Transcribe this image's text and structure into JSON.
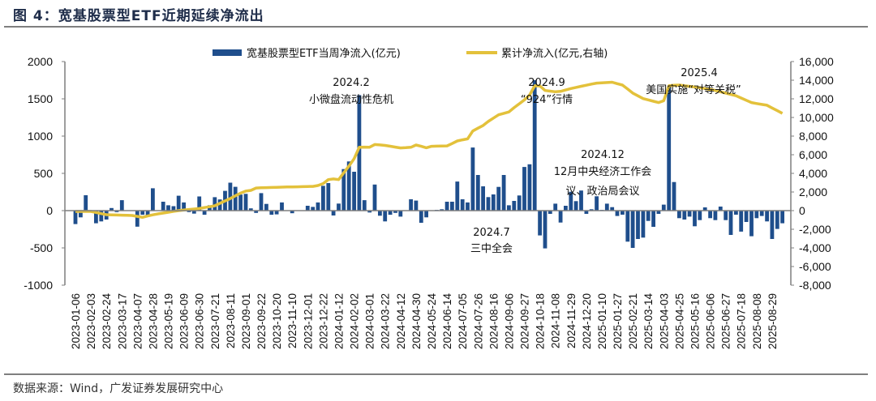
{
  "title": "图 4：宽基股票型ETF近期延续净流出",
  "source": "数据来源：Wind，广发证券发展研究中心",
  "colors": {
    "bar": "#1f4e8c",
    "line": "#e3c13b",
    "axis": "#7f7f7f"
  },
  "chart_data": {
    "type": "bar+line",
    "legend": [
      "宽基股票型ETF当周净流入(亿元)",
      "累计净流入(亿元,右轴)"
    ],
    "legend_position": "top",
    "grid": false,
    "ylim_left": [
      -1000,
      2000
    ],
    "yticks_left": [
      "2000",
      "1500",
      "1000",
      "500",
      "0",
      "-500",
      "-1000"
    ],
    "ylim_right": [
      -8000,
      16000
    ],
    "yticks_right": [
      "16,000",
      "14,000",
      "12,000",
      "10,000",
      "8,000",
      "6,000",
      "4,000",
      "2,000",
      "0",
      "-2,000",
      "-4,000",
      "-6,000",
      "-8,000"
    ],
    "xtick_labels": [
      "2023-01-06",
      "2023-02-03",
      "2023-02-24",
      "2023-03-17",
      "2023-04-07",
      "2023-04-28",
      "2023-05-19",
      "2023-06-09",
      "2023-06-30",
      "2023-07-21",
      "2023-08-11",
      "2023-09-01",
      "2023-09-22",
      "2023-10-20",
      "2023-11-10",
      "2023-12-01",
      "2023-12-22",
      "2024-01-12",
      "2024-02-02",
      "2024-03-01",
      "2024-03-22",
      "2024-04-12",
      "2024-04-30",
      "2024-05-24",
      "2024-06-14",
      "2024-07-05",
      "2024-07-26",
      "2024-08-16",
      "2024-09-06",
      "2024-09-27",
      "2024-10-18",
      "2024-11-08",
      "2024-11-29",
      "2024-12-20",
      "2025-01-10",
      "2025-01-27",
      "2025-02-21",
      "2025-03-14",
      "2025-04-03",
      "2025-04-25",
      "2025-05-16",
      "2025-06-06",
      "2025-06-27",
      "2025-07-18",
      "2025-08-08",
      "2025-08-29"
    ],
    "dates": [
      "2023-01-06",
      "2023-01-13",
      "2023-01-20",
      "2023-02-03",
      "2023-02-10",
      "2023-02-17",
      "2023-02-24",
      "2023-03-03",
      "2023-03-10",
      "2023-03-17",
      "2023-03-24",
      "2023-03-31",
      "2023-04-07",
      "2023-04-14",
      "2023-04-21",
      "2023-04-28",
      "2023-05-05",
      "2023-05-12",
      "2023-05-19",
      "2023-05-26",
      "2023-06-02",
      "2023-06-09",
      "2023-06-16",
      "2023-06-21",
      "2023-06-30",
      "2023-07-07",
      "2023-07-14",
      "2023-07-21",
      "2023-07-28",
      "2023-08-04",
      "2023-08-11",
      "2023-08-18",
      "2023-08-25",
      "2023-09-01",
      "2023-09-08",
      "2023-09-15",
      "2023-09-22",
      "2023-09-28",
      "2023-10-13",
      "2023-10-20",
      "2023-10-27",
      "2023-11-03",
      "2023-11-10",
      "2023-11-17",
      "2023-11-24",
      "2023-12-01",
      "2023-12-08",
      "2023-12-15",
      "2023-12-22",
      "2023-12-29",
      "2024-01-05",
      "2024-01-12",
      "2024-01-19",
      "2024-01-26",
      "2024-02-02",
      "2024-02-08",
      "2024-02-23",
      "2024-03-01",
      "2024-03-08",
      "2024-03-15",
      "2024-03-22",
      "2024-03-29",
      "2024-04-03",
      "2024-04-12",
      "2024-04-19",
      "2024-04-26",
      "2024-04-30",
      "2024-05-10",
      "2024-05-17",
      "2024-05-24",
      "2024-05-31",
      "2024-06-07",
      "2024-06-14",
      "2024-06-21",
      "2024-06-28",
      "2024-07-05",
      "2024-07-12",
      "2024-07-19",
      "2024-07-26",
      "2024-08-02",
      "2024-08-09",
      "2024-08-16",
      "2024-08-23",
      "2024-08-30",
      "2024-09-06",
      "2024-09-13",
      "2024-09-20",
      "2024-09-27",
      "2024-09-30",
      "2024-10-11",
      "2024-10-18",
      "2024-10-25",
      "2024-11-01",
      "2024-11-08",
      "2024-11-15",
      "2024-11-22",
      "2024-11-29",
      "2024-12-06",
      "2024-12-13",
      "2024-12-20",
      "2024-12-27",
      "2025-01-03",
      "2025-01-10",
      "2025-01-17",
      "2025-01-24",
      "2025-01-27",
      "2025-02-07",
      "2025-02-14",
      "2025-02-21",
      "2025-02-28",
      "2025-03-07",
      "2025-03-14",
      "2025-03-21",
      "2025-03-28",
      "2025-04-03",
      "2025-04-11",
      "2025-04-18",
      "2025-04-25",
      "2025-04-30",
      "2025-05-09",
      "2025-05-16",
      "2025-05-23",
      "2025-05-30",
      "2025-06-06",
      "2025-06-13",
      "2025-06-20",
      "2025-06-27",
      "2025-07-04",
      "2025-07-11",
      "2025-07-18",
      "2025-07-25",
      "2025-08-01",
      "2025-08-08",
      "2025-08-15",
      "2025-08-22",
      "2025-08-29",
      "2025-09-05",
      "2025-09-12"
    ],
    "series": [
      {
        "name": "宽基股票型ETF当周净流入(亿元)",
        "type": "bar",
        "axis": "left",
        "values": [
          -180,
          -90,
          206,
          0,
          -170,
          -145,
          -120,
          35,
          -20,
          140,
          0,
          0,
          -215,
          -55,
          -75,
          300,
          0,
          120,
          72,
          60,
          200,
          110,
          -20,
          -40,
          190,
          -55,
          72,
          180,
          150,
          265,
          375,
          320,
          215,
          225,
          30,
          -30,
          235,
          90,
          -55,
          -50,
          110,
          0,
          -35,
          0,
          0,
          65,
          50,
          110,
          333,
          370,
          -65,
          95,
          558,
          660,
          522,
          1550,
          140,
          -25,
          350,
          -68,
          -145,
          -55,
          -30,
          -80,
          0,
          152,
          135,
          -163,
          -90,
          0,
          10,
          18,
          120,
          120,
          390,
          152,
          110,
          847,
          478,
          326,
          181,
          217,
          318,
          478,
          72,
          130,
          203,
          586,
          622,
          1750,
          -333,
          -507,
          -43,
          94,
          -160,
          65,
          253,
          127,
          270,
          -43,
          18,
          192,
          10,
          94,
          47,
          -72,
          -54,
          -416,
          -500,
          -380,
          -362,
          -138,
          -217,
          -43,
          80,
          1650,
          384,
          -101,
          -120,
          -80,
          -210,
          -127,
          43,
          -101,
          -127,
          54,
          -127,
          -326,
          -54,
          -282,
          -152,
          -344,
          -101,
          -72,
          -145,
          -380,
          -246,
          -170
        ]
      },
      {
        "name": "累计净流入(亿元,右轴)",
        "type": "line",
        "axis": "right",
        "values": [
          -90,
          -90,
          -90,
          -90,
          -200,
          -320,
          -435,
          -450,
          -470,
          -490,
          -505,
          -520,
          -620,
          -720,
          -570,
          -450,
          -350,
          -260,
          -170,
          -80,
          0,
          60,
          120,
          175,
          230,
          330,
          420,
          520,
          780,
          1040,
          1300,
          1590,
          1880,
          2100,
          2175,
          2430,
          2450,
          2470,
          2490,
          2505,
          2520,
          2535,
          2550,
          2560,
          2575,
          2590,
          2600,
          2700,
          2900,
          3330,
          3400,
          3330,
          4060,
          4785,
          5570,
          6800,
          6820,
          6810,
          7100,
          7050,
          7000,
          6910,
          6820,
          6730,
          6760,
          6800,
          7040,
          6900,
          6750,
          6900,
          6920,
          6930,
          6950,
          7200,
          7480,
          7600,
          7700,
          8550,
          8850,
          9135,
          9570,
          9930,
          10290,
          10440,
          10590,
          11050,
          11470,
          11890,
          12400,
          13400,
          13380,
          12900,
          12830,
          12760,
          12800,
          12950,
          13100,
          13230,
          13350,
          13460,
          13580,
          13690,
          13720,
          13750,
          13780,
          13630,
          13480,
          13050,
          12620,
          12320,
          12030,
          11890,
          11740,
          11600,
          11800,
          13400,
          13450,
          13480,
          13410,
          13340,
          13270,
          13200,
          13100,
          13000,
          12900,
          12760,
          12620,
          12470,
          12330,
          12090,
          11840,
          11600,
          11500,
          11400,
          11310,
          11020,
          10730,
          10440
        ]
      }
    ],
    "annotations": [
      {
        "id": "a2024_2",
        "lines": [
          "2024.2",
          "小微盘流动性危机"
        ]
      },
      {
        "id": "a2024_9",
        "lines": [
          "2024.9",
          "“924”行情"
        ]
      },
      {
        "id": "a2025_4",
        "lines": [
          "2025.4",
          "美国实施“对等关税”"
        ]
      },
      {
        "id": "a2024_12",
        "lines": [
          "2024.12",
          "12月中央经济工作会",
          "议、政治局会议"
        ]
      },
      {
        "id": "a2024_7",
        "lines": [
          "2024.7",
          "三中全会"
        ]
      }
    ]
  }
}
